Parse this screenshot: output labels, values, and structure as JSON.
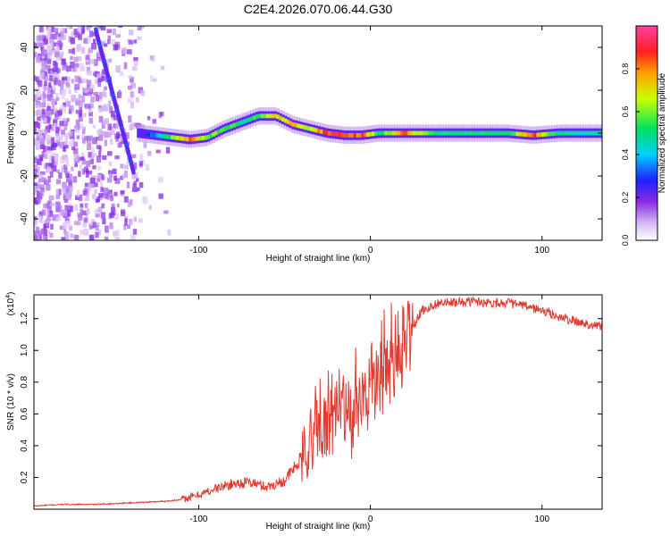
{
  "title": "C2E4.2026.070.06.44.G30",
  "chart_data": [
    {
      "type": "heatmap",
      "xlabel": "Height of straight line (km)",
      "ylabel": "Frequency (Hz)",
      "xlim": [
        -196,
        135
      ],
      "ylim": [
        -50,
        50
      ],
      "xticks": [
        -100,
        0,
        100
      ],
      "xtick_labels": [
        "-100",
        "0",
        "100"
      ],
      "yticks": [
        -40,
        -20,
        0,
        20,
        40
      ],
      "ytick_labels": [
        "-40",
        "-20",
        "0",
        "20",
        "40"
      ],
      "colorbar": {
        "label": "Normalized spectral amplitude",
        "range": [
          0,
          1
        ],
        "ticks": [
          0,
          0.2,
          0.4,
          0.6,
          0.8
        ],
        "tick_labels": [
          "0.0",
          "0.2",
          "0.4",
          "0.6",
          "0.8"
        ]
      },
      "ridge": {
        "x": [
          -135,
          -125,
          -115,
          -105,
          -95,
          -85,
          -75,
          -65,
          -55,
          -45,
          -35,
          -25,
          -15,
          -5,
          5,
          20,
          40,
          60,
          80,
          95,
          110,
          135
        ],
        "frequency": [
          0,
          -1,
          -2,
          -3,
          -2,
          2,
          5,
          8,
          8,
          4,
          2,
          0,
          -1,
          -1,
          0,
          0,
          0,
          0,
          0,
          -1,
          0,
          0
        ],
        "amplitude": [
          0.2,
          0.35,
          0.6,
          0.8,
          0.6,
          0.55,
          0.5,
          0.55,
          0.7,
          0.75,
          0.65,
          0.85,
          0.9,
          0.85,
          0.5,
          0.8,
          0.5,
          0.5,
          0.5,
          0.85,
          0.45,
          0.45
        ]
      },
      "streak": {
        "x": [
          -160,
          -138
        ],
        "frequency": [
          48,
          -18
        ]
      }
    },
    {
      "type": "line",
      "xlabel": "Height of straight line (km)",
      "ylabel": "SNR (10 * v/v)",
      "y_multiplier": "(x10",
      "y_multiplier_exp": "4",
      "xlim": [
        -196,
        135
      ],
      "ylim": [
        0,
        1.35
      ],
      "xticks": [
        -100,
        0,
        100
      ],
      "xtick_labels": [
        "-100",
        "0",
        "100"
      ],
      "yticks": [
        0.2,
        0.4,
        0.6,
        0.8,
        1.0,
        1.2
      ],
      "ytick_labels": [
        "0.2",
        "0.4",
        "0.6",
        "0.8",
        "1.0",
        "1.2"
      ],
      "series": [
        {
          "name": "SNR",
          "color": "#e03c32",
          "x": [
            -196,
            -180,
            -160,
            -140,
            -120,
            -110,
            -100,
            -90,
            -80,
            -70,
            -60,
            -50,
            -45,
            -40,
            -35,
            -30,
            -25,
            -20,
            -15,
            -10,
            -5,
            0,
            5,
            10,
            15,
            20,
            25,
            30,
            40,
            50,
            60,
            70,
            80,
            90,
            100,
            110,
            120,
            135
          ],
          "values": [
            0.02,
            0.03,
            0.03,
            0.04,
            0.05,
            0.06,
            0.09,
            0.13,
            0.16,
            0.17,
            0.14,
            0.18,
            0.25,
            0.32,
            0.42,
            0.5,
            0.58,
            0.62,
            0.6,
            0.55,
            0.65,
            0.8,
            0.78,
            0.88,
            0.95,
            1.05,
            1.15,
            1.25,
            1.3,
            1.3,
            1.31,
            1.3,
            1.3,
            1.28,
            1.25,
            1.21,
            1.18,
            1.15
          ]
        }
      ]
    }
  ]
}
